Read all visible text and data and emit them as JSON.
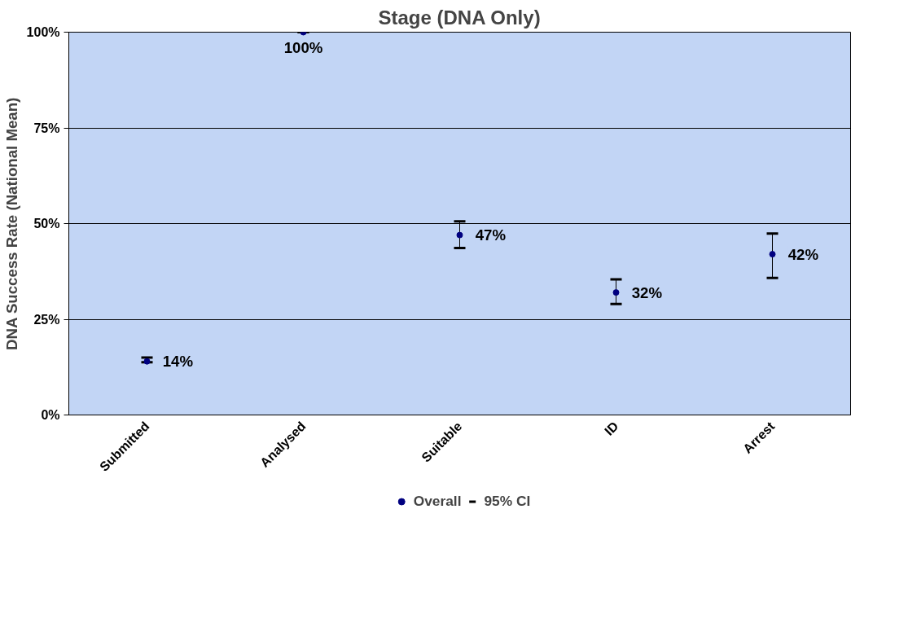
{
  "chart_data": {
    "type": "scatter",
    "title": "Stage (DNA Only)",
    "ylabel": "DNA Success Rate (National Mean)",
    "categories": [
      "Submitted",
      "Analysed",
      "Suitable",
      "ID",
      "Arrest"
    ],
    "series": [
      {
        "name": "Overall",
        "color": "#000080",
        "values": [
          14,
          100,
          47,
          32,
          42
        ],
        "errors": [
          [
            13.8,
            15
          ],
          [
            100,
            100
          ],
          [
            43.6,
            50.6
          ],
          [
            29,
            35.4
          ],
          [
            35.8,
            47.4
          ]
        ]
      }
    ],
    "value_labels": [
      "14%",
      "100%",
      "47%",
      "32%",
      "42%"
    ],
    "annotations": [
      "95% CI"
    ],
    "ylim": [
      0,
      100
    ],
    "yticks": [
      {
        "value": 0,
        "label": "0%"
      },
      {
        "value": 25,
        "label": "25%"
      },
      {
        "value": 50,
        "label": "50%"
      },
      {
        "value": 75,
        "label": "75%"
      },
      {
        "value": 100,
        "label": "100%"
      }
    ],
    "grid": "y",
    "legend": "bottom",
    "marker": "circle"
  }
}
